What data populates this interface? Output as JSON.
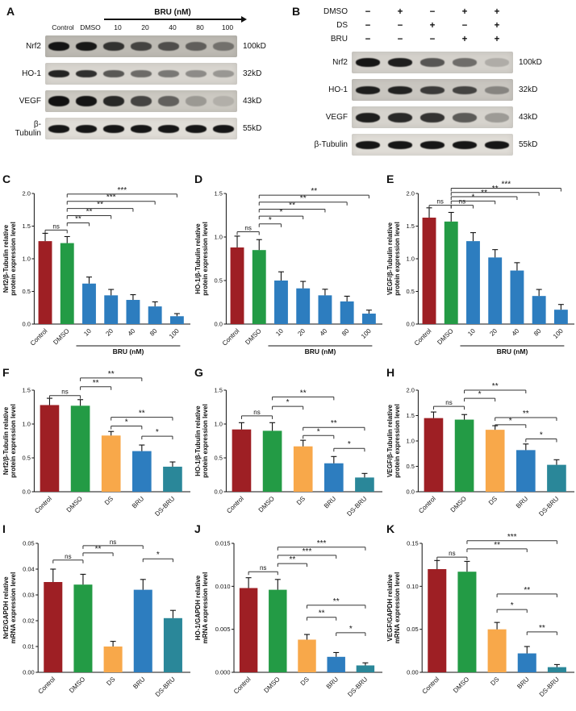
{
  "blot_A": {
    "label": "A",
    "dose_header": "BRU (nM)",
    "lanes": [
      "Control",
      "DMSO",
      "10",
      "20",
      "40",
      "80",
      "100"
    ],
    "rows": [
      {
        "protein": "Nrf2",
        "kd": "100kD",
        "bg": "#bdbab3",
        "band_h": 11,
        "intensities": [
          0.95,
          0.93,
          0.78,
          0.68,
          0.62,
          0.52,
          0.42
        ]
      },
      {
        "protein": "HO-1",
        "kd": "32kD",
        "bg": "#d8d5cf",
        "band_h": 9,
        "intensities": [
          0.88,
          0.82,
          0.62,
          0.52,
          0.46,
          0.36,
          0.3
        ]
      },
      {
        "protein": "VEGF",
        "kd": "43kD",
        "bg": "#ccc9c2",
        "band_h": 13,
        "intensities": [
          0.97,
          0.95,
          0.85,
          0.7,
          0.55,
          0.25,
          0.13
        ]
      },
      {
        "protein": "β-Tubulin",
        "kd": "55kD",
        "bg": "#e0ddd7",
        "band_h": 10,
        "intensities": [
          0.95,
          0.95,
          0.95,
          0.95,
          0.95,
          0.95,
          0.95
        ]
      }
    ]
  },
  "blot_B": {
    "label": "B",
    "treatments": [
      {
        "name": "DMSO",
        "signs": [
          "−",
          "+",
          "−",
          "+",
          "+"
        ]
      },
      {
        "name": "DS",
        "signs": [
          "−",
          "−",
          "+",
          "−",
          "+"
        ]
      },
      {
        "name": "BRU",
        "signs": [
          "−",
          "−",
          "−",
          "+",
          "+"
        ]
      }
    ],
    "rows": [
      {
        "protein": "Nrf2",
        "kd": "100kD",
        "bg": "#d4d1cb",
        "band_h": 11,
        "intensities": [
          0.95,
          0.9,
          0.62,
          0.5,
          0.18
        ]
      },
      {
        "protein": "HO-1",
        "kd": "32kD",
        "bg": "#c9c6c0",
        "band_h": 10,
        "intensities": [
          0.9,
          0.88,
          0.75,
          0.7,
          0.35
        ]
      },
      {
        "protein": "VEGF",
        "kd": "43kD",
        "bg": "#d6d3cd",
        "band_h": 12,
        "intensities": [
          0.9,
          0.85,
          0.8,
          0.6,
          0.28
        ]
      },
      {
        "protein": "β-Tubulin",
        "kd": "55kD",
        "bg": "#e0ddd7",
        "band_h": 10,
        "intensities": [
          0.95,
          0.95,
          0.95,
          0.95,
          0.95
        ]
      }
    ]
  },
  "palette": {
    "control_red": "#9e1f24",
    "dmso_green": "#239b45",
    "bru_blue": "#2d7dbf",
    "ds_orange": "#f8a84a",
    "ds_bru_teal": "#2a8799"
  },
  "chart_data": [
    {
      "id": "C",
      "type": "bar",
      "ylabel": [
        "Nrf2/β-Tubulin relative",
        "protein expression level"
      ],
      "categories": [
        "Control",
        "DMSO",
        "10",
        "20",
        "40",
        "80",
        "100"
      ],
      "values": [
        1.27,
        1.24,
        0.62,
        0.44,
        0.37,
        0.27,
        0.12
      ],
      "errors": [
        0.12,
        0.1,
        0.1,
        0.09,
        0.08,
        0.07,
        0.04
      ],
      "colors": [
        "#9e1f24",
        "#239b45",
        "#2d7dbf",
        "#2d7dbf",
        "#2d7dbf",
        "#2d7dbf",
        "#2d7dbf"
      ],
      "ylim": [
        0,
        2.0
      ],
      "ytick_vals": [
        0,
        0.5,
        1.0,
        1.5,
        2.0
      ],
      "ytick_labels": [
        "0.0",
        "0.5",
        "1.0",
        "1.5",
        "2.0"
      ],
      "group_label": "BRU (nM)",
      "group_span": [
        2,
        6
      ],
      "significance": [
        {
          "a": 0,
          "b": 1,
          "label": "ns",
          "y": 1.44
        },
        {
          "a": 1,
          "b": 2,
          "label": "**",
          "y": 1.55
        },
        {
          "a": 1,
          "b": 3,
          "label": "**",
          "y": 1.66
        },
        {
          "a": 1,
          "b": 4,
          "label": "**",
          "y": 1.77
        },
        {
          "a": 1,
          "b": 5,
          "label": "***",
          "y": 1.88
        },
        {
          "a": 1,
          "b": 6,
          "label": "***",
          "y": 1.99
        }
      ]
    },
    {
      "id": "D",
      "type": "bar",
      "ylabel": [
        "HO-1/β-Tubulin relative",
        "protein expression level"
      ],
      "categories": [
        "Control",
        "DMSO",
        "10",
        "20",
        "40",
        "80",
        "100"
      ],
      "values": [
        0.88,
        0.85,
        0.5,
        0.41,
        0.33,
        0.26,
        0.12
      ],
      "errors": [
        0.13,
        0.12,
        0.1,
        0.08,
        0.07,
        0.06,
        0.04
      ],
      "colors": [
        "#9e1f24",
        "#239b45",
        "#2d7dbf",
        "#2d7dbf",
        "#2d7dbf",
        "#2d7dbf",
        "#2d7dbf"
      ],
      "ylim": [
        0,
        1.5
      ],
      "ytick_vals": [
        0,
        0.5,
        1.0,
        1.5
      ],
      "ytick_labels": [
        "0.0",
        "0.5",
        "1.0",
        "1.5"
      ],
      "group_label": "BRU (nM)",
      "group_span": [
        2,
        6
      ],
      "significance": [
        {
          "a": 0,
          "b": 1,
          "label": "ns",
          "y": 1.06
        },
        {
          "a": 1,
          "b": 2,
          "label": "*",
          "y": 1.15
        },
        {
          "a": 1,
          "b": 3,
          "label": "*",
          "y": 1.24
        },
        {
          "a": 1,
          "b": 4,
          "label": "**",
          "y": 1.32
        },
        {
          "a": 1,
          "b": 5,
          "label": "**",
          "y": 1.4
        },
        {
          "a": 1,
          "b": 6,
          "label": "**",
          "y": 1.48
        }
      ]
    },
    {
      "id": "E",
      "type": "bar",
      "ylabel": [
        "VEGF/β-Tubulin relative",
        "protein expression level"
      ],
      "categories": [
        "Control",
        "DMSO",
        "10",
        "20",
        "40",
        "80",
        "100"
      ],
      "values": [
        1.63,
        1.57,
        1.27,
        1.02,
        0.82,
        0.43,
        0.22
      ],
      "errors": [
        0.15,
        0.14,
        0.13,
        0.12,
        0.12,
        0.1,
        0.08
      ],
      "colors": [
        "#9e1f24",
        "#239b45",
        "#2d7dbf",
        "#2d7dbf",
        "#2d7dbf",
        "#2d7dbf",
        "#2d7dbf"
      ],
      "ylim": [
        0,
        2.0
      ],
      "ytick_vals": [
        0,
        0.5,
        1.0,
        1.5,
        2.0
      ],
      "ytick_labels": [
        "0.0",
        "0.5",
        "1.0",
        "1.5",
        "2.0"
      ],
      "group_label": "BRU (nM)",
      "group_span": [
        2,
        6
      ],
      "significance": [
        {
          "a": 0,
          "b": 1,
          "label": "ns",
          "y": 1.82
        },
        {
          "a": 1,
          "b": 2,
          "label": "ns",
          "y": 1.82
        },
        {
          "a": 1,
          "b": 3,
          "label": "*",
          "y": 1.885
        },
        {
          "a": 1,
          "b": 4,
          "label": "**",
          "y": 1.95
        },
        {
          "a": 1,
          "b": 5,
          "label": "**",
          "y": 2.015
        },
        {
          "a": 1,
          "b": 6,
          "label": "***",
          "y": 2.08
        }
      ]
    },
    {
      "id": "F",
      "type": "bar",
      "ylabel": [
        "Nrf2/β-Tubulin relative",
        "protein expression level"
      ],
      "categories": [
        "Control",
        "DMSO",
        "DS",
        "BRU",
        "DS-BRU"
      ],
      "values": [
        1.28,
        1.27,
        0.83,
        0.6,
        0.37
      ],
      "errors": [
        0.1,
        0.09,
        0.06,
        0.09,
        0.07
      ],
      "colors": [
        "#9e1f24",
        "#239b45",
        "#f8a84a",
        "#2d7dbf",
        "#2a8799"
      ],
      "ylim": [
        0,
        1.5
      ],
      "ytick_vals": [
        0,
        0.5,
        1.0,
        1.5
      ],
      "ytick_labels": [
        "0.0",
        "0.5",
        "1.0",
        "1.5"
      ],
      "significance": [
        {
          "a": 0,
          "b": 1,
          "label": "ns",
          "y": 1.42
        },
        {
          "a": 1,
          "b": 2,
          "label": "**",
          "y": 1.55
        },
        {
          "a": 1,
          "b": 3,
          "label": "**",
          "y": 1.68
        },
        {
          "a": 2,
          "b": 4,
          "label": "**",
          "y": 1.1
        },
        {
          "a": 2,
          "b": 3,
          "label": "*",
          "y": 0.97
        },
        {
          "a": 3,
          "b": 4,
          "label": "*",
          "y": 0.82
        }
      ]
    },
    {
      "id": "G",
      "type": "bar",
      "ylabel": [
        "HO-1/β-Tubulin relative",
        "protein expression level"
      ],
      "categories": [
        "Control",
        "DMSO",
        "DS",
        "BRU",
        "DS-BRU"
      ],
      "values": [
        0.92,
        0.9,
        0.67,
        0.42,
        0.21
      ],
      "errors": [
        0.1,
        0.12,
        0.09,
        0.1,
        0.06
      ],
      "colors": [
        "#9e1f24",
        "#239b45",
        "#f8a84a",
        "#2d7dbf",
        "#2a8799"
      ],
      "ylim": [
        0,
        1.5
      ],
      "ytick_vals": [
        0,
        0.5,
        1.0,
        1.5
      ],
      "ytick_labels": [
        "0.0",
        "0.5",
        "1.0",
        "1.5"
      ],
      "significance": [
        {
          "a": 0,
          "b": 1,
          "label": "ns",
          "y": 1.12
        },
        {
          "a": 1,
          "b": 2,
          "label": "*",
          "y": 1.26
        },
        {
          "a": 1,
          "b": 3,
          "label": "**",
          "y": 1.4
        },
        {
          "a": 2,
          "b": 4,
          "label": "**",
          "y": 0.95
        },
        {
          "a": 2,
          "b": 3,
          "label": "*",
          "y": 0.83
        },
        {
          "a": 3,
          "b": 4,
          "label": "*",
          "y": 0.64
        }
      ]
    },
    {
      "id": "H",
      "type": "bar",
      "ylabel": [
        "VEGF/β-Tubulin relative",
        "protein expression level"
      ],
      "categories": [
        "Control",
        "DMSO",
        "DS",
        "BRU",
        "DS-BRU"
      ],
      "values": [
        1.45,
        1.42,
        1.22,
        0.82,
        0.53
      ],
      "errors": [
        0.12,
        0.1,
        0.08,
        0.12,
        0.1
      ],
      "colors": [
        "#9e1f24",
        "#239b45",
        "#f8a84a",
        "#2d7dbf",
        "#2a8799"
      ],
      "ylim": [
        0,
        2.0
      ],
      "ytick_vals": [
        0,
        0.5,
        1.0,
        1.5,
        2.0
      ],
      "ytick_labels": [
        "0.0",
        "0.5",
        "1.0",
        "1.5",
        "2.0"
      ],
      "significance": [
        {
          "a": 0,
          "b": 1,
          "label": "ns",
          "y": 1.68
        },
        {
          "a": 1,
          "b": 2,
          "label": "*",
          "y": 1.84
        },
        {
          "a": 1,
          "b": 3,
          "label": "**",
          "y": 2.0
        },
        {
          "a": 2,
          "b": 4,
          "label": "**",
          "y": 1.46
        },
        {
          "a": 2,
          "b": 3,
          "label": "*",
          "y": 1.32
        },
        {
          "a": 3,
          "b": 4,
          "label": "*",
          "y": 1.04
        }
      ]
    },
    {
      "id": "I",
      "type": "bar",
      "ylabel": [
        "Nrf2/GAPDH relative",
        "mRNA expression level"
      ],
      "categories": [
        "Control",
        "DMSO",
        "DS",
        "BRU",
        "DS-BRU"
      ],
      "values": [
        0.035,
        0.034,
        0.01,
        0.032,
        0.021
      ],
      "errors": [
        0.005,
        0.004,
        0.002,
        0.004,
        0.003
      ],
      "colors": [
        "#9e1f24",
        "#239b45",
        "#f8a84a",
        "#2d7dbf",
        "#2a8799"
      ],
      "ylim": [
        0,
        0.05
      ],
      "ytick_vals": [
        0,
        0.01,
        0.02,
        0.03,
        0.04,
        0.05
      ],
      "ytick_labels": [
        "0.00",
        "0.01",
        "0.02",
        "0.03",
        "0.04",
        "0.05"
      ],
      "significance": [
        {
          "a": 0,
          "b": 1,
          "label": "ns",
          "y": 0.0435
        },
        {
          "a": 1,
          "b": 2,
          "label": "**",
          "y": 0.0463
        },
        {
          "a": 1,
          "b": 3,
          "label": "ns",
          "y": 0.0491
        },
        {
          "a": 3,
          "b": 4,
          "label": "*",
          "y": 0.044
        }
      ]
    },
    {
      "id": "J",
      "type": "bar",
      "ylabel": [
        "HO-1/GAPDH  relative",
        "mRNA expression level"
      ],
      "categories": [
        "Control",
        "DMSO",
        "DS",
        "BRU",
        "DS-BRU"
      ],
      "values": [
        0.0098,
        0.0096,
        0.0038,
        0.0018,
        0.0008
      ],
      "errors": [
        0.0012,
        0.0012,
        0.0006,
        0.0005,
        0.0003
      ],
      "colors": [
        "#9e1f24",
        "#239b45",
        "#f8a84a",
        "#2d7dbf",
        "#2a8799"
      ],
      "ylim": [
        0,
        0.015
      ],
      "ytick_vals": [
        0,
        0.005,
        0.01,
        0.015
      ],
      "ytick_labels": [
        "0.000",
        "0.005",
        "0.010",
        "0.015"
      ],
      "significance": [
        {
          "a": 0,
          "b": 1,
          "label": "ns",
          "y": 0.0117
        },
        {
          "a": 1,
          "b": 2,
          "label": "**",
          "y": 0.01265
        },
        {
          "a": 1,
          "b": 3,
          "label": "***",
          "y": 0.0136
        },
        {
          "a": 1,
          "b": 4,
          "label": "***",
          "y": 0.01455
        },
        {
          "a": 2,
          "b": 4,
          "label": "**",
          "y": 0.0078
        },
        {
          "a": 2,
          "b": 3,
          "label": "**",
          "y": 0.0064
        },
        {
          "a": 3,
          "b": 4,
          "label": "*",
          "y": 0.0046
        }
      ]
    },
    {
      "id": "K",
      "type": "bar",
      "ylabel": [
        "VEGF/GAPDH  relative",
        "mRNA expression level"
      ],
      "categories": [
        "Control",
        "DMSO",
        "DS",
        "BRU",
        "DS-BRU"
      ],
      "values": [
        0.12,
        0.117,
        0.05,
        0.022,
        0.006
      ],
      "errors": [
        0.01,
        0.012,
        0.008,
        0.008,
        0.003
      ],
      "colors": [
        "#9e1f24",
        "#239b45",
        "#f8a84a",
        "#2d7dbf",
        "#2a8799"
      ],
      "ylim": [
        0,
        0.15
      ],
      "ytick_vals": [
        0,
        0.05,
        0.1,
        0.15
      ],
      "ytick_labels": [
        "0.00",
        "0.05",
        "0.10",
        "0.15"
      ],
      "significance": [
        {
          "a": 0,
          "b": 1,
          "label": "ns",
          "y": 0.134
        },
        {
          "a": 1,
          "b": 3,
          "label": "**",
          "y": 0.1435
        },
        {
          "a": 1,
          "b": 4,
          "label": "***",
          "y": 0.153
        },
        {
          "a": 2,
          "b": 4,
          "label": "**",
          "y": 0.091
        },
        {
          "a": 2,
          "b": 3,
          "label": "*",
          "y": 0.073
        },
        {
          "a": 3,
          "b": 4,
          "label": "**",
          "y": 0.047
        }
      ]
    }
  ]
}
